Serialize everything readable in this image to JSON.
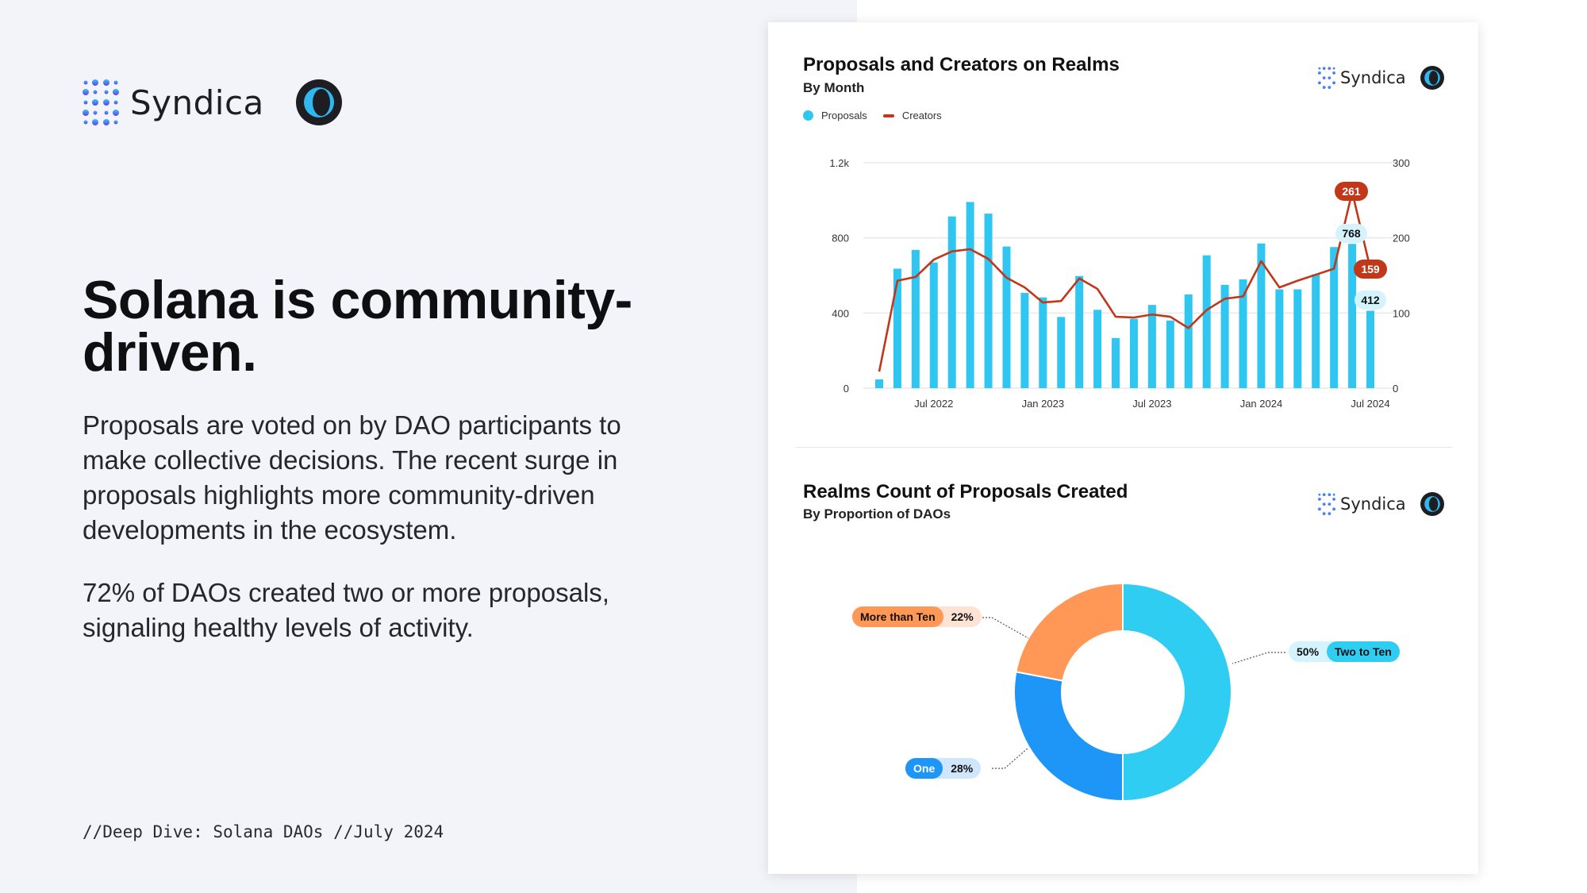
{
  "brand": {
    "name": "Syndica"
  },
  "headline": "Solana is community-driven.",
  "paragraphs": [
    "Proposals are voted on by DAO participants to make collective decisions. The recent surge in proposals highlights more community-driven developments in the ecosystem.",
    "72% of DAOs created two or more proposals, signaling healthy levels of activity."
  ],
  "footer": "//Deep Dive: Solana DAOs //July 2024",
  "colors": {
    "proposals": "#2fc6f1",
    "creators": "#c0371a",
    "one": "#1e96f7",
    "two_to_ten": "#30cdf2",
    "more_than_ten": "#ff9857"
  },
  "chart_data": [
    {
      "type": "bar+line",
      "title": "Proposals and Creators on Realms",
      "subtitle": "By Month",
      "legend": [
        "Proposals",
        "Creators"
      ],
      "legend_position": "top-left",
      "x": [
        "Apr 2022",
        "May 2022",
        "Jun 2022",
        "Jul 2022",
        "Aug 2022",
        "Sep 2022",
        "Oct 2022",
        "Nov 2022",
        "Dec 2022",
        "Jan 2023",
        "Feb 2023",
        "Mar 2023",
        "Apr 2023",
        "May 2023",
        "Jun 2023",
        "Jul 2023",
        "Aug 2023",
        "Sep 2023",
        "Oct 2023",
        "Nov 2023",
        "Dec 2023",
        "Jan 2024",
        "Feb 2024",
        "Mar 2024",
        "Apr 2024",
        "May 2024",
        "Jun 2024",
        "Jul 2024"
      ],
      "x_tick_labels": [
        "Jul 2022",
        "Jan 2023",
        "Jul 2023",
        "Jan 2024",
        "Jul 2024"
      ],
      "series": [
        {
          "name": "Proposals",
          "axis": "left",
          "type": "bar",
          "values": [
            47,
            636,
            736,
            669,
            914,
            991,
            929,
            754,
            507,
            483,
            379,
            597,
            417,
            267,
            369,
            443,
            360,
            499,
            707,
            550,
            579,
            770,
            526,
            526,
            606,
            751,
            768,
            412
          ]
        },
        {
          "name": "Creators",
          "axis": "right",
          "type": "line",
          "values": [
            22,
            143,
            148,
            171,
            182,
            185,
            172,
            147,
            134,
            114,
            116,
            146,
            132,
            95,
            94,
            98,
            95,
            80,
            104,
            119,
            122,
            169,
            134,
            143,
            151,
            159,
            261,
            159
          ]
        }
      ],
      "data_labels": {
        "proposals": [
          "768",
          "412"
        ],
        "creators": [
          "261",
          "159"
        ]
      },
      "left_axis": {
        "ticks": [
          "0",
          "400",
          "800",
          "1.2k"
        ],
        "range": [
          0,
          1200
        ]
      },
      "right_axis": {
        "ticks": [
          "0",
          "100",
          "200",
          "300"
        ],
        "range": [
          0,
          300
        ]
      },
      "grid": true
    },
    {
      "type": "pie",
      "title": "Realms Count of Proposals Created",
      "subtitle": "By Proportion of DAOs",
      "slices": [
        {
          "label": "Two to Ten",
          "value": 50,
          "pct": "50%"
        },
        {
          "label": "One",
          "value": 28,
          "pct": "28%"
        },
        {
          "label": "More than Ten",
          "value": 22,
          "pct": "22%"
        }
      ]
    }
  ]
}
